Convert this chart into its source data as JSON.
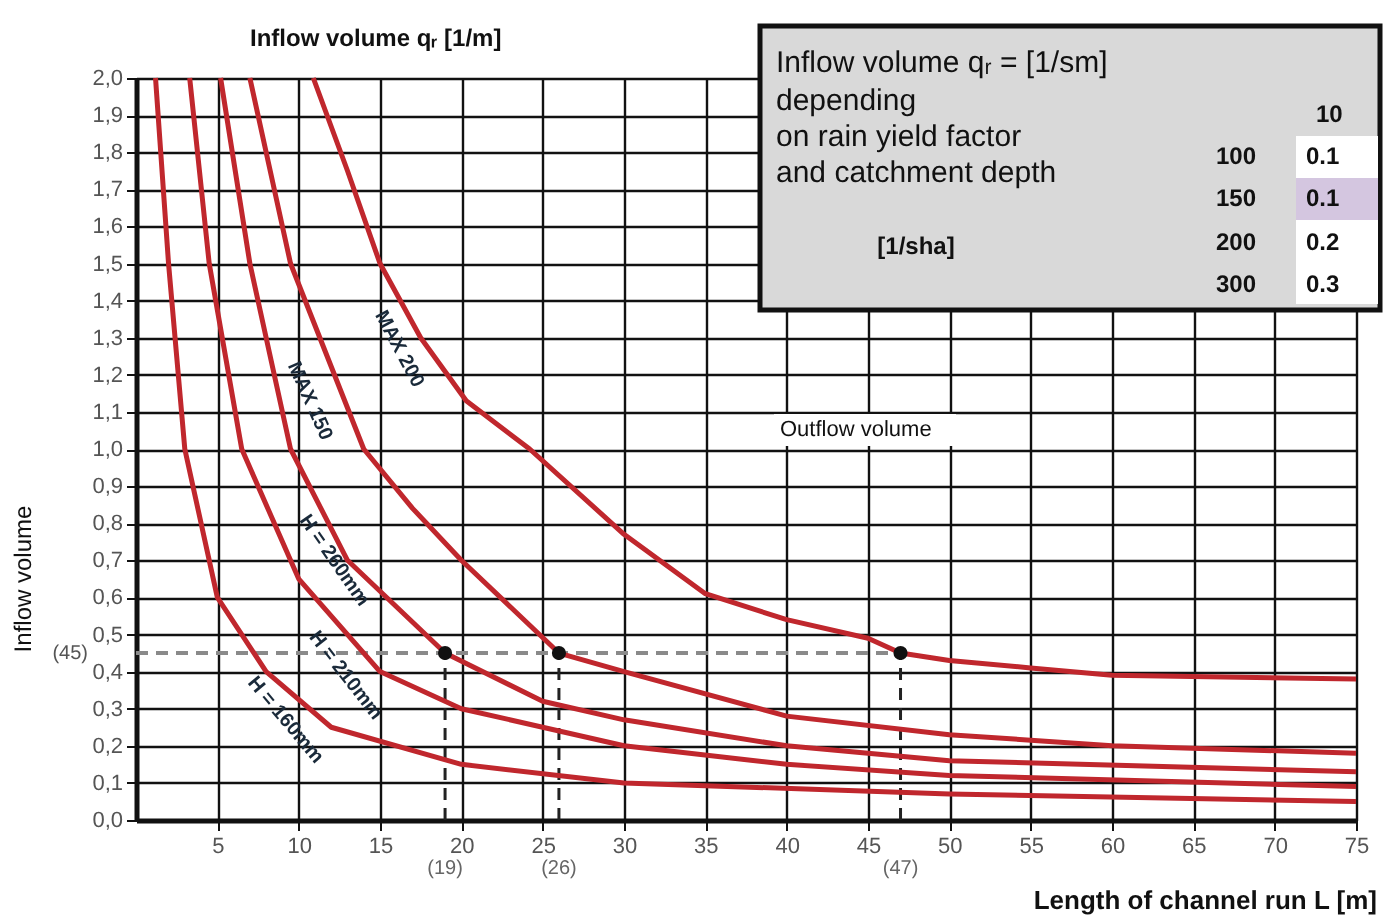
{
  "chart_data": {
    "type": "line",
    "ylabel": "Inflow volume",
    "xlabel": "Length of channel run L [m]",
    "xlim": [
      0,
      75
    ],
    "ylim": [
      0,
      2
    ],
    "xticks": [
      5,
      10,
      15,
      20,
      25,
      30,
      35,
      40,
      45,
      50,
      55,
      60,
      65,
      70,
      75
    ],
    "yticks": [
      {
        "value": 0,
        "label": "0,0"
      },
      {
        "value": 0.1,
        "label": "0,1"
      },
      {
        "value": 0.2,
        "label": "0,2"
      },
      {
        "value": 0.3,
        "label": "0,3"
      },
      {
        "value": 0.4,
        "label": "0,4"
      },
      {
        "value": 0.5,
        "label": "0,5"
      },
      {
        "value": 0.6,
        "label": "0,6"
      },
      {
        "value": 0.7,
        "label": "0,7"
      },
      {
        "value": 0.8,
        "label": "0,8"
      },
      {
        "value": 0.9,
        "label": "0,9"
      },
      {
        "value": 1,
        "label": "1,0"
      },
      {
        "value": 1.1,
        "label": "1,1"
      },
      {
        "value": 1.2,
        "label": "1,2"
      },
      {
        "value": 1.3,
        "label": "1,3"
      },
      {
        "value": 1.4,
        "label": "1,4"
      },
      {
        "value": 1.5,
        "label": "1,5"
      },
      {
        "value": 1.6,
        "label": "1,6"
      },
      {
        "value": 1.7,
        "label": "1,7"
      },
      {
        "value": 1.8,
        "label": "1,8"
      },
      {
        "value": 1.9,
        "label": "1,9"
      },
      {
        "value": 2,
        "label": "2,0"
      }
    ],
    "grid": true,
    "series": [
      {
        "color": "#c0272d",
        "x": [
          10.9,
          13,
          15,
          17.5,
          20.3,
          24.2,
          30,
          35,
          40,
          45,
          47,
          50,
          55,
          60,
          75
        ],
        "values": [
          2.0,
          1.75,
          1.5,
          1.3,
          1.13,
          1.0,
          0.77,
          0.61,
          0.54,
          0.49,
          0.45,
          0.43,
          0.41,
          0.39,
          0.38
        ]
      },
      {
        "color": "#c0272d",
        "x": [
          7,
          9.5,
          14,
          17,
          20,
          26,
          30,
          40,
          50,
          60,
          75
        ],
        "values": [
          2.0,
          1.5,
          1.0,
          0.84,
          0.7,
          0.45,
          0.4,
          0.28,
          0.23,
          0.2,
          0.18
        ]
      },
      {
        "color": "#c0272d",
        "x": [
          5.2,
          7,
          9.5,
          13,
          19,
          25,
          30,
          40,
          50,
          75
        ],
        "values": [
          2.0,
          1.5,
          1.0,
          0.7,
          0.45,
          0.32,
          0.27,
          0.2,
          0.16,
          0.13
        ]
      },
      {
        "color": "#c0272d",
        "x": [
          3.3,
          4.5,
          6.5,
          10,
          15,
          20,
          30,
          40,
          50,
          75
        ],
        "values": [
          2.0,
          1.5,
          1.0,
          0.65,
          0.4,
          0.3,
          0.2,
          0.15,
          0.12,
          0.09
        ]
      },
      {
        "color": "#c0272d",
        "x": [
          1.2,
          2,
          3,
          5,
          8,
          12,
          20,
          30,
          50,
          75
        ],
        "values": [
          2.0,
          1.5,
          1.0,
          0.6,
          0.4,
          0.25,
          0.15,
          0.1,
          0.07,
          0.05
        ]
      },
      {
        "type": "scatter",
        "color": "#111111",
        "x": [
          19,
          26,
          47
        ],
        "values": [
          0.45,
          0.45,
          0.45
        ]
      }
    ],
    "ref_lines": [
      {
        "axis": "y",
        "value": 0.45,
        "label": "(45)",
        "line_style": "dashed",
        "color": "#8a8a8a"
      },
      {
        "axis": "x",
        "value": 19,
        "label": "(19)",
        "line_style": "dashed",
        "color": "#222222"
      },
      {
        "axis": "x",
        "value": 26,
        "label": "(26)",
        "line_style": "dashed",
        "color": "#222222"
      },
      {
        "axis": "x",
        "value": 47,
        "label": "(47)",
        "line_style": "dashed",
        "color": "#222222"
      }
    ],
    "annotations": [
      "Inflow volume qᵣ [1/m]",
      "Inflow volume qᵣ = [1/sm]",
      "depending",
      "on rain yield factor",
      "and catchment depth",
      "[1/sha]",
      "10",
      "100",
      "150",
      "200",
      "300",
      "0.1",
      "0.1",
      "0.2",
      "0.3",
      "Outflow volume",
      "MAX 200",
      "MAX 150",
      "H = 260mm",
      "H = 210mm",
      "H = 160mm"
    ]
  }
}
